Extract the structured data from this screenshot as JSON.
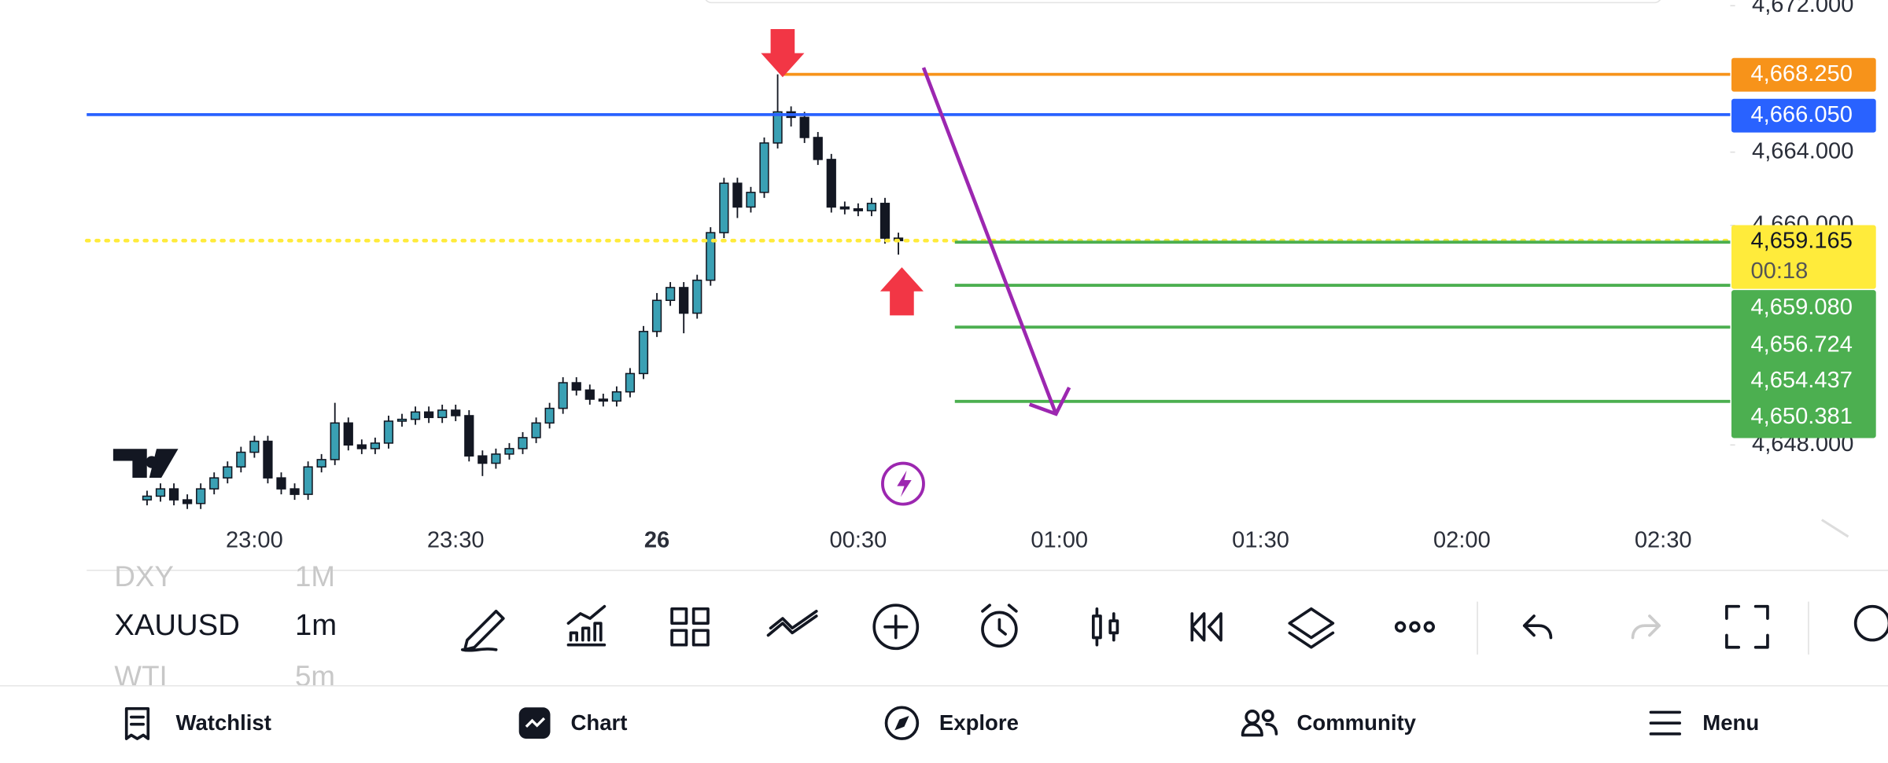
{
  "chart_data": {
    "type": "candlestick",
    "x": [
      "22:44",
      "22:46",
      "22:48",
      "22:50",
      "22:52",
      "22:54",
      "22:56",
      "22:58",
      "23:00",
      "23:02",
      "23:04",
      "23:06",
      "23:08",
      "23:10",
      "23:12",
      "23:14",
      "23:16",
      "23:18",
      "23:20",
      "23:22",
      "23:24",
      "23:26",
      "23:28",
      "23:30",
      "23:32",
      "23:34",
      "23:36",
      "23:38",
      "23:40",
      "23:42",
      "23:44",
      "23:46",
      "23:48",
      "23:50",
      "23:52",
      "23:54",
      "23:56",
      "23:58",
      "00:00",
      "00:02",
      "00:04",
      "00:06",
      "00:08",
      "00:10",
      "00:12",
      "00:14",
      "00:16",
      "00:18",
      "00:20",
      "00:22",
      "00:24",
      "00:26",
      "00:28",
      "00:30",
      "00:32",
      "00:34",
      "00:36"
    ],
    "open": [
      4645.0,
      4645.2,
      4645.6,
      4645.0,
      4644.8,
      4645.6,
      4646.2,
      4646.8,
      4647.6,
      4648.2,
      4646.2,
      4645.6,
      4645.3,
      4646.8,
      4647.2,
      4649.2,
      4648.0,
      4647.8,
      4648.1,
      4649.3,
      4649.4,
      4649.8,
      4649.5,
      4649.9,
      4649.6,
      4647.4,
      4647.0,
      4647.5,
      4647.8,
      4648.4,
      4649.2,
      4650.0,
      4651.4,
      4651.0,
      4650.5,
      4650.4,
      4650.9,
      4651.9,
      4654.2,
      4655.9,
      4656.6,
      4655.2,
      4657.0,
      4659.6,
      4662.3,
      4661.0,
      4661.8,
      4664.5,
      4666.2,
      4665.9,
      4664.8,
      4663.6,
      4661.0,
      4660.9,
      4660.8,
      4661.2,
      4659.3
    ],
    "high": [
      4645.5,
      4645.9,
      4645.9,
      4645.3,
      4645.9,
      4646.5,
      4647.1,
      4647.9,
      4648.5,
      4648.5,
      4646.5,
      4645.9,
      4647.1,
      4647.5,
      4650.3,
      4649.5,
      4648.3,
      4648.4,
      4649.6,
      4649.7,
      4650.1,
      4650.1,
      4650.2,
      4650.2,
      4649.9,
      4647.7,
      4647.8,
      4648.1,
      4648.7,
      4649.5,
      4650.3,
      4651.7,
      4651.7,
      4651.3,
      4650.8,
      4651.2,
      4652.2,
      4654.5,
      4656.3,
      4656.9,
      4656.9,
      4657.3,
      4659.9,
      4662.6,
      4662.6,
      4662.1,
      4664.8,
      4668.25,
      4666.5,
      4666.2,
      4665.1,
      4663.9,
      4661.3,
      4661.2,
      4661.5,
      4661.5,
      4659.6
    ],
    "low": [
      4644.7,
      4644.9,
      4644.7,
      4644.5,
      4644.5,
      4645.3,
      4645.9,
      4646.5,
      4647.3,
      4645.9,
      4645.3,
      4645.0,
      4645.0,
      4646.5,
      4646.9,
      4647.7,
      4647.5,
      4647.5,
      4647.8,
      4649.0,
      4649.1,
      4649.2,
      4649.2,
      4649.3,
      4647.1,
      4646.3,
      4646.7,
      4647.2,
      4647.5,
      4648.1,
      4648.9,
      4649.7,
      4650.7,
      4650.2,
      4650.1,
      4650.1,
      4650.6,
      4651.6,
      4653.9,
      4655.6,
      4654.1,
      4654.9,
      4656.7,
      4659.3,
      4660.4,
      4660.7,
      4661.5,
      4664.2,
      4665.4,
      4664.5,
      4663.3,
      4660.7,
      4660.6,
      4660.5,
      4660.5,
      4659.0,
      4658.4
    ],
    "close": [
      4645.2,
      4645.6,
      4645.0,
      4644.8,
      4645.6,
      4646.2,
      4646.8,
      4647.6,
      4648.2,
      4646.2,
      4645.6,
      4645.3,
      4646.8,
      4647.2,
      4649.2,
      4648.0,
      4647.8,
      4648.1,
      4649.3,
      4649.4,
      4649.8,
      4649.5,
      4649.9,
      4649.6,
      4647.4,
      4647.0,
      4647.5,
      4647.8,
      4648.4,
      4649.2,
      4650.0,
      4651.4,
      4651.0,
      4650.5,
      4650.4,
      4650.9,
      4651.9,
      4654.2,
      4655.9,
      4656.6,
      4655.2,
      4657.0,
      4659.6,
      4662.3,
      4661.0,
      4661.8,
      4664.5,
      4666.2,
      4665.9,
      4664.8,
      4663.6,
      4661.0,
      4660.9,
      4660.8,
      4661.2,
      4659.3,
      4659.165
    ],
    "up_color": "#3aa0b4",
    "down_color": "#131722",
    "xlim": [
      "22:35",
      "02:40"
    ],
    "ylim": [
      4644.5,
      4672.3
    ],
    "xticks": [
      "23:00",
      "23:30",
      {
        "value": "00:00",
        "label": "26"
      },
      "00:30",
      "01:00",
      "01:30",
      "02:00",
      "02:30"
    ],
    "yticks": [
      {
        "value": 4672,
        "label": "4,672.000"
      },
      {
        "value": 4664,
        "label": "4,664.000"
      },
      {
        "value": 4660,
        "label": "4,660.000"
      },
      {
        "value": 4648,
        "label": "4,648.000"
      }
    ],
    "price_lines": [
      {
        "value": 4668.25,
        "label": "4,668.250",
        "color": "#f7931a"
      },
      {
        "value": 4666.05,
        "label": "4,666.050",
        "color": "#2962ff"
      },
      {
        "value": 4659.165,
        "label": "4,659.165",
        "color": "#ffeb3b"
      },
      {
        "value": 4659.08,
        "label": "4,659.080",
        "color": "#4caf50"
      },
      {
        "value": 4656.724,
        "label": "4,656.724",
        "color": "#4caf50"
      },
      {
        "value": 4654.437,
        "label": "4,654.437",
        "color": "#4caf50"
      },
      {
        "value": 4650.381,
        "label": "4,650.381",
        "color": "#4caf50"
      }
    ],
    "countdown": "00:18"
  },
  "toolbar": {
    "symbols": [
      {
        "symbol": "DXY",
        "interval": "1M"
      },
      {
        "symbol": "XAUUSD",
        "interval": "1m"
      },
      {
        "symbol": "WTI",
        "interval": "5m"
      }
    ]
  },
  "nav": [
    "Watchlist",
    "Chart",
    "Explore",
    "Community",
    "Menu"
  ]
}
